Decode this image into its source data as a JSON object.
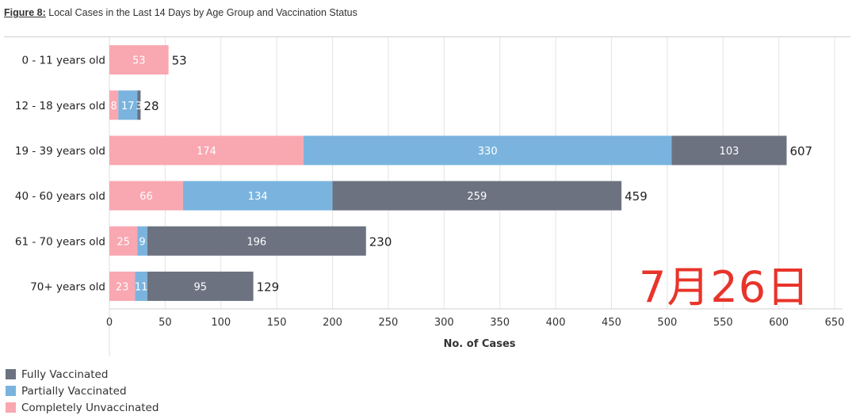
{
  "figure": {
    "number_label": "Figure 8:",
    "caption": "Local Cases in the Last 14 Days by Age Group and Vaccination Status"
  },
  "stamp": {
    "text": "7月26日",
    "color": "#e8342a"
  },
  "colors": {
    "Completely Unvaccinated": "#f9a7b1",
    "Partially Vaccinated": "#7ab4de",
    "Fully Vaccinated": "#6c7280"
  },
  "legend": {
    "items": [
      {
        "label": "Fully Vaccinated",
        "color": "#6c7280"
      },
      {
        "label": "Partially Vaccinated",
        "color": "#7ab4de"
      },
      {
        "label": "Completely Unvaccinated",
        "color": "#f9a7b1"
      }
    ]
  },
  "chart_data": {
    "type": "bar",
    "orientation": "horizontal",
    "stacked": true,
    "title": "Local Cases in the Last 14 Days by Age Group and Vaccination Status",
    "xlabel": "No. of Cases",
    "ylabel": "",
    "xlim": [
      0,
      650
    ],
    "xticks": [
      0,
      50,
      100,
      150,
      200,
      250,
      300,
      350,
      400,
      450,
      500,
      550,
      600,
      650
    ],
    "categories": [
      "0 - 11 years old",
      "12 - 18 years old",
      "19 - 39 years old",
      "40 - 60 years old",
      "61 - 70 years old",
      "70+ years old"
    ],
    "series": [
      {
        "name": "Completely Unvaccinated",
        "values": [
          53,
          8,
          174,
          66,
          25,
          23
        ],
        "labels": [
          "53",
          "8",
          "174",
          "66",
          "25",
          "23"
        ]
      },
      {
        "name": "Partially Vaccinated",
        "values": [
          0,
          17,
          330,
          134,
          9,
          11
        ],
        "labels": [
          "",
          "17",
          "330",
          "134",
          "9",
          "11"
        ]
      },
      {
        "name": "Fully Vaccinated",
        "values": [
          0,
          3,
          103,
          259,
          196,
          95
        ],
        "labels": [
          "",
          "3",
          "103",
          "259",
          "196",
          "95"
        ]
      }
    ],
    "totals": [
      53,
      28,
      607,
      459,
      230,
      129
    ],
    "total_labels": [
      "53",
      "28",
      "607",
      "459",
      "230",
      "129"
    ],
    "legend_position": "bottom-left"
  }
}
